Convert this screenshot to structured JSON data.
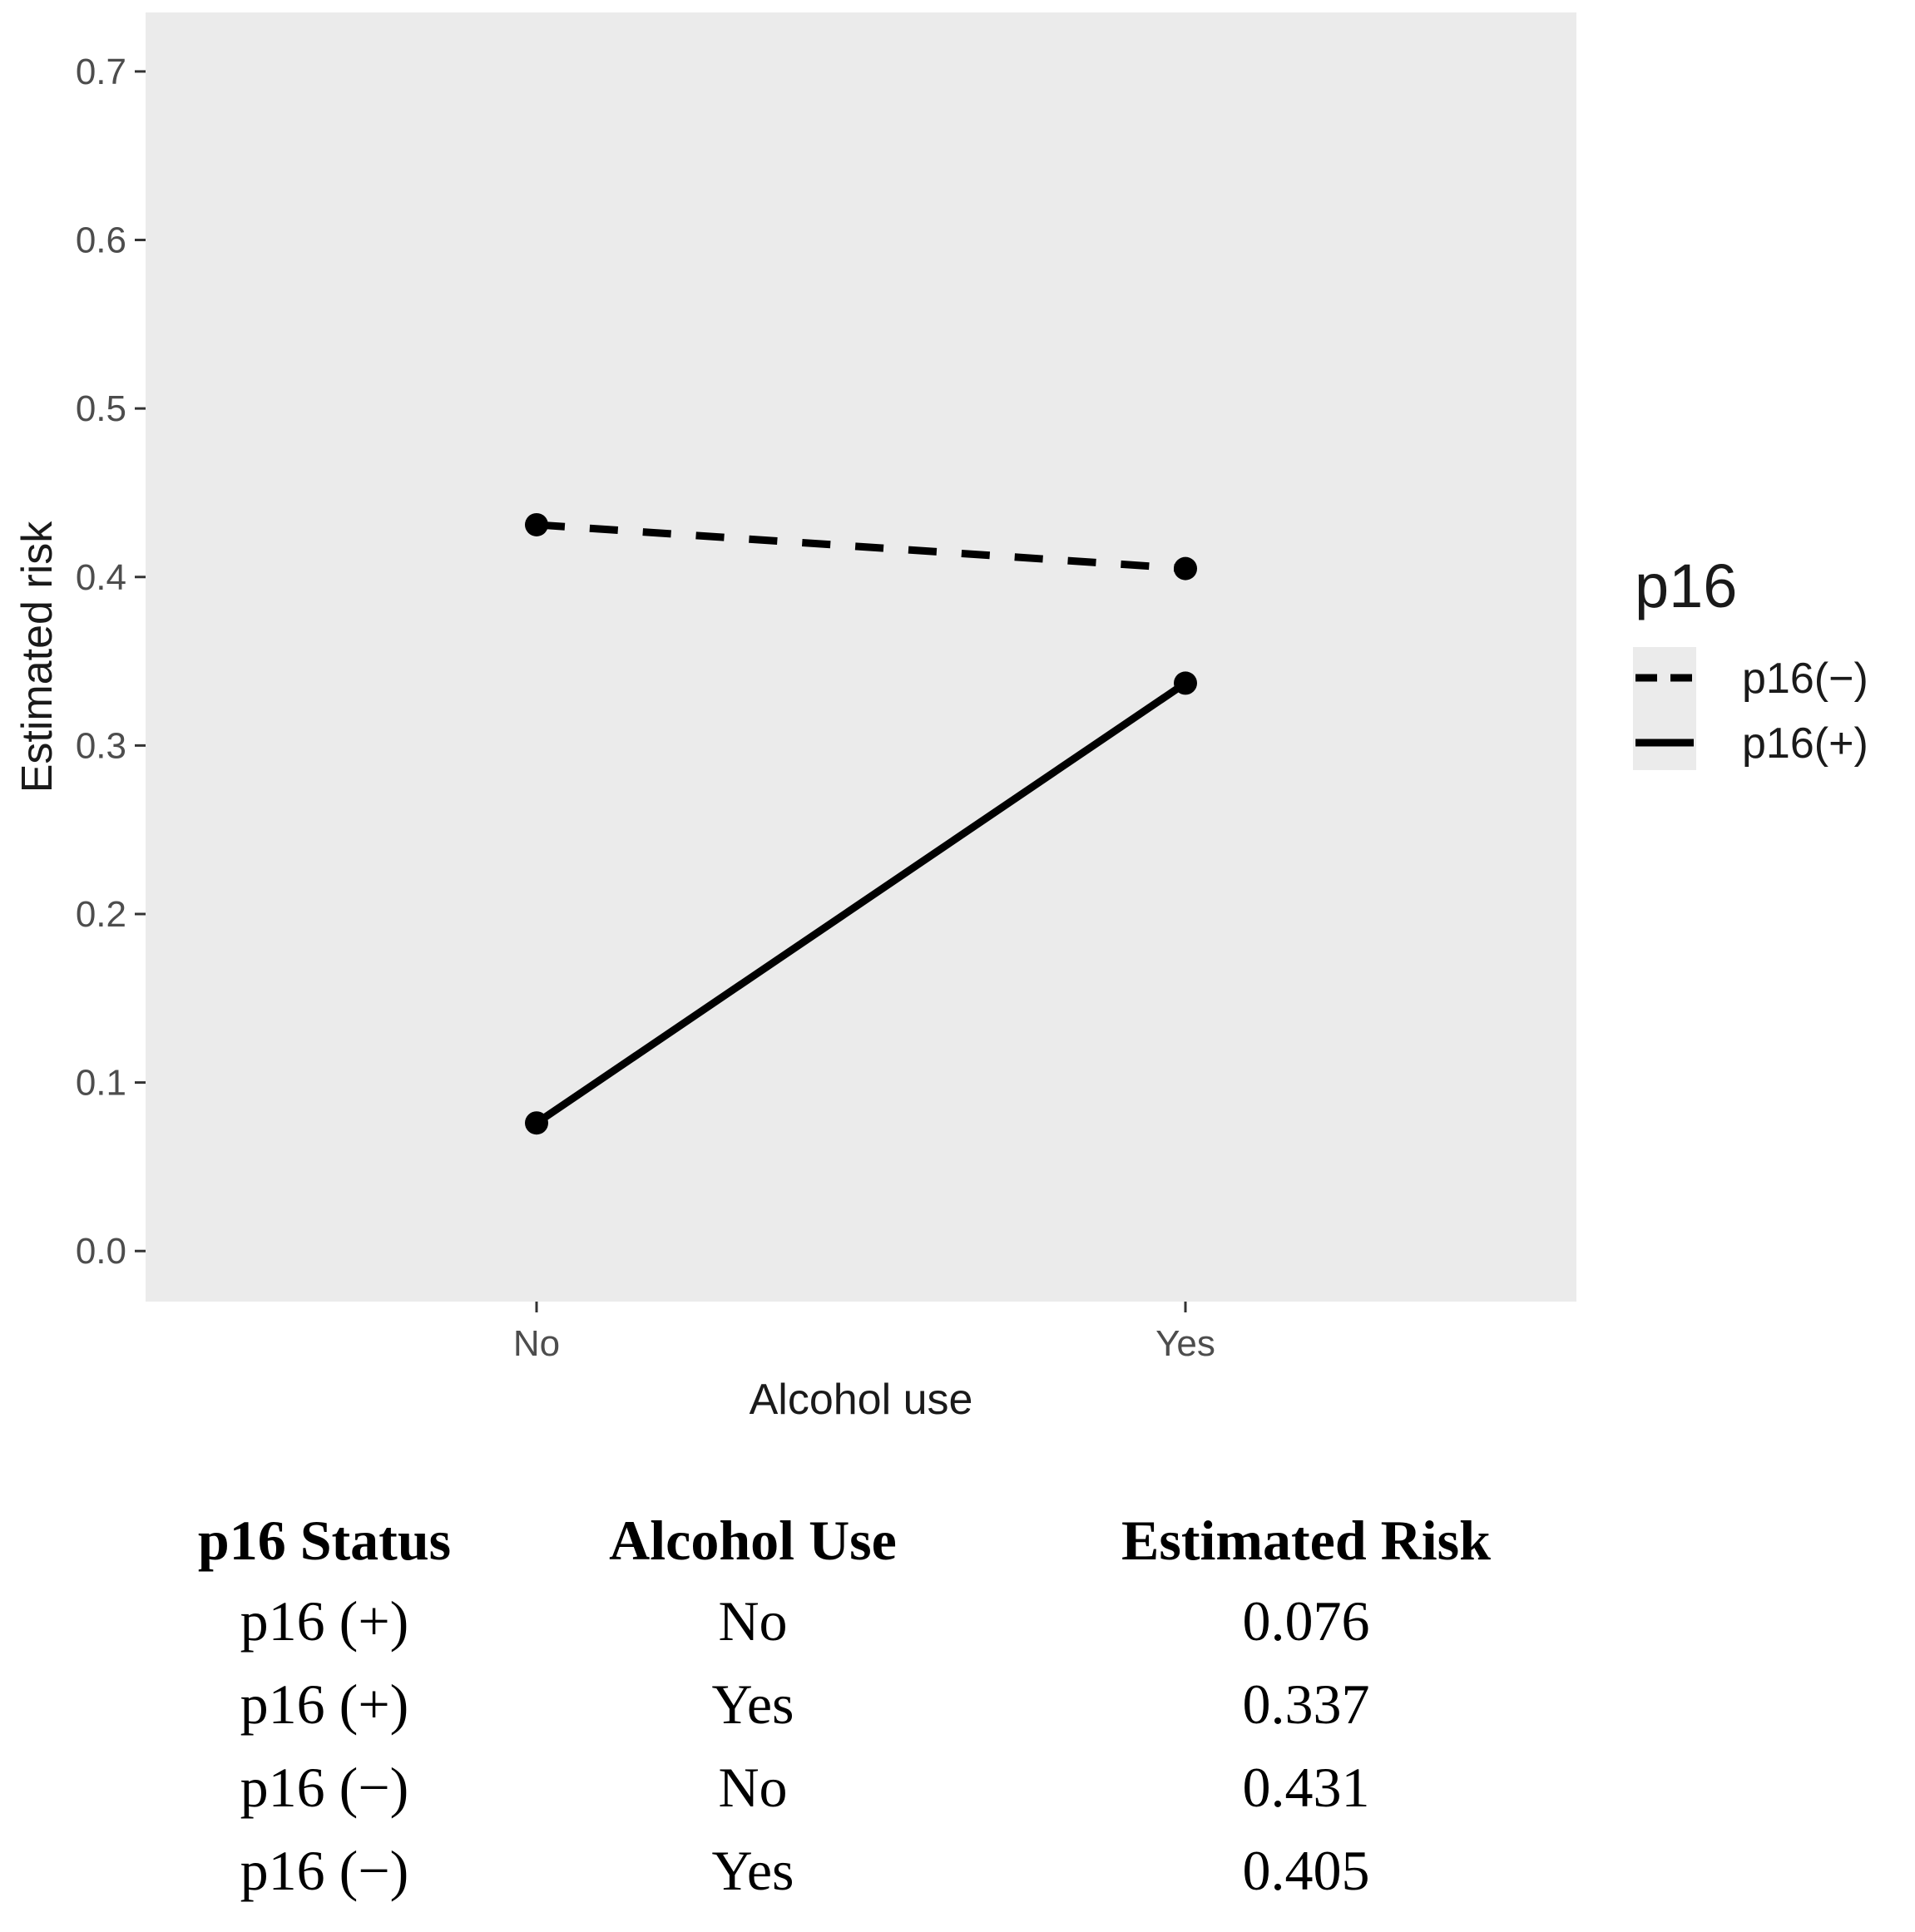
{
  "chart_data": {
    "type": "line",
    "xlabel": "Alcohol use",
    "ylabel": "Estimated risk",
    "categories": [
      "No",
      "Yes"
    ],
    "ylim": [
      -0.03,
      0.735
    ],
    "yticks": [
      0.0,
      0.1,
      0.2,
      0.3,
      0.4,
      0.5,
      0.6,
      0.7
    ],
    "ytick_labels": [
      "0.0",
      "0.1",
      "0.2",
      "0.3",
      "0.4",
      "0.5",
      "0.6",
      "0.7"
    ],
    "grid": false,
    "background": "#ebebeb",
    "legend": {
      "title": "p16",
      "placement": "right",
      "entries": [
        "p16(−)",
        "p16(+)"
      ]
    },
    "series": [
      {
        "name": "p16(−)",
        "linestyle": "dashed",
        "color": "#000000",
        "values": [
          0.431,
          0.405
        ]
      },
      {
        "name": "p16(+)",
        "linestyle": "solid",
        "color": "#000000",
        "values": [
          0.076,
          0.337
        ]
      }
    ]
  },
  "table": {
    "headers": [
      "p16 Status",
      "Alcohol Use",
      "Estimated Risk"
    ],
    "rows": [
      [
        "p16 (+)",
        "No",
        "0.076"
      ],
      [
        "p16 (+)",
        "Yes",
        "0.337"
      ],
      [
        "p16 (−)",
        "No",
        "0.431"
      ],
      [
        "p16 (−)",
        "Yes",
        "0.405"
      ]
    ]
  }
}
